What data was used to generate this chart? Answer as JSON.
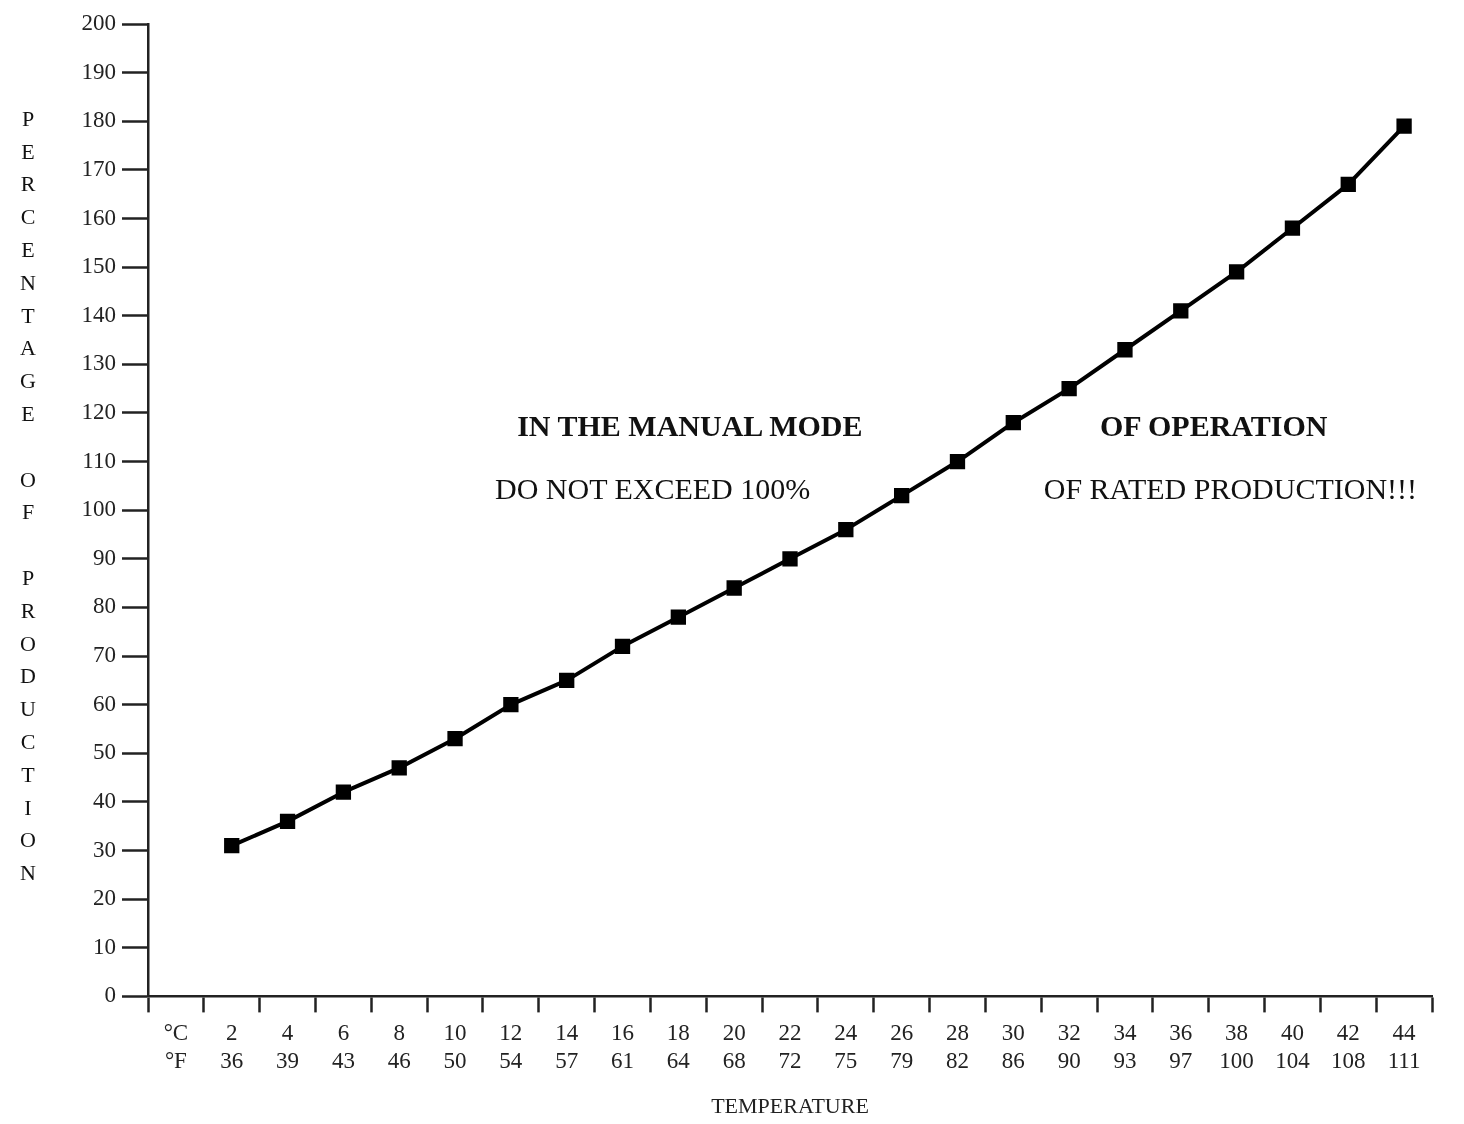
{
  "chart_data": {
    "type": "line",
    "xlabel": "TEMPERATURE",
    "ylabel": "PERCENTAGE OF PRODUCTION",
    "categories": [
      "°C\n°F",
      "2\n36",
      "4\n39",
      "6\n43",
      "8\n46",
      "10\n50",
      "12\n54",
      "14\n57",
      "16\n61",
      "18\n64",
      "20\n68",
      "22\n72",
      "24\n75",
      "26\n79",
      "28\n82",
      "30\n86",
      "32\n90",
      "34\n93",
      "36\n97",
      "38\n100",
      "40\n104",
      "42\n108",
      "44\n111"
    ],
    "values": [
      null,
      31,
      36,
      42,
      47,
      53,
      60,
      65,
      72,
      78,
      84,
      90,
      96,
      103,
      110,
      118,
      125,
      133,
      141,
      149,
      158,
      167,
      179
    ],
    "color": "#000000",
    "marker": "square",
    "line_style": "solid",
    "ylim": [
      0,
      200
    ],
    "yticks": [
      0,
      10,
      20,
      30,
      40,
      50,
      60,
      70,
      80,
      90,
      100,
      110,
      120,
      130,
      140,
      150,
      160,
      170,
      180,
      190,
      200
    ],
    "grid": false,
    "legend": false,
    "annotations": [
      "IN THE MANUAL MODE",
      "OF OPERATION",
      "DO NOT EXCEED 100%",
      "OF RATED PRODUCTION!!!"
    ]
  }
}
